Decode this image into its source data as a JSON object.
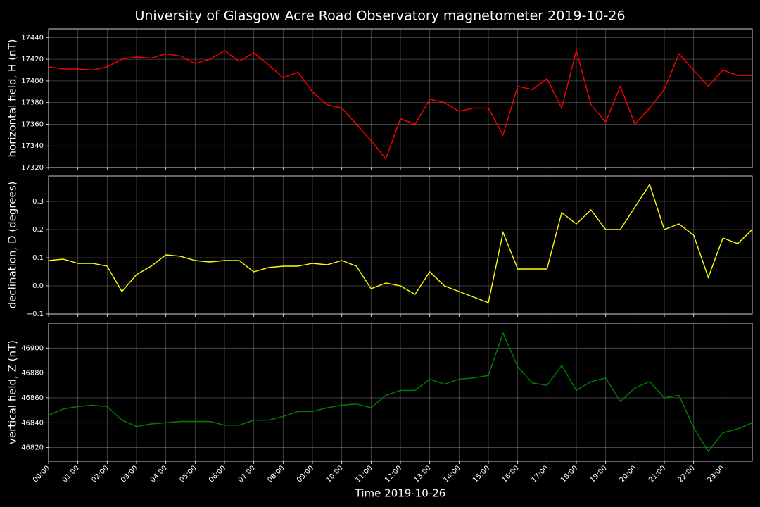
{
  "title": "University of Glasgow Acre Road Observatory magnetometer 2019-10-26",
  "grid": true,
  "chart_data": [
    {
      "type": "line",
      "ylabel": "horizontal field, H (nT)",
      "color": "#ff0000",
      "x": [
        0,
        0.5,
        1,
        1.5,
        2,
        2.5,
        3,
        3.5,
        4,
        4.5,
        5,
        5.5,
        6,
        6.5,
        7,
        7.5,
        8,
        8.5,
        9,
        9.5,
        10,
        10.5,
        11,
        11.5,
        12,
        12.5,
        13,
        13.5,
        14,
        14.5,
        15,
        15.5,
        16,
        16.5,
        17,
        17.5,
        18,
        18.5,
        19,
        19.5,
        20,
        20.5,
        21,
        21.5,
        22,
        22.5,
        23,
        23.5,
        24
      ],
      "values": [
        17413,
        17411,
        17411,
        17410,
        17413,
        17420,
        17422,
        17421,
        17425,
        17423,
        17416,
        17420,
        17428,
        17418,
        17426,
        17415,
        17403,
        17408,
        17390,
        17378,
        17375,
        17360,
        17345,
        17328,
        17365,
        17360,
        17383,
        17380,
        17372,
        17375,
        17375,
        17350,
        17395,
        17392,
        17402,
        17375,
        17428,
        17378,
        17362,
        17395,
        17360,
        17375,
        17392,
        17425,
        17410,
        17395,
        17410,
        17405,
        17405
      ],
      "xlim": [
        0,
        24
      ],
      "ylim": [
        17320,
        17448
      ],
      "yticks": [
        17320,
        17340,
        17360,
        17380,
        17400,
        17420,
        17440
      ]
    },
    {
      "type": "line",
      "ylabel": "declination, D (degrees)",
      "color": "#ffff00",
      "x": [
        0,
        0.5,
        1,
        1.5,
        2,
        2.5,
        3,
        3.5,
        4,
        4.5,
        5,
        5.5,
        6,
        6.5,
        7,
        7.5,
        8,
        8.5,
        9,
        9.5,
        10,
        10.5,
        11,
        11.5,
        12,
        12.5,
        13,
        13.5,
        14,
        14.5,
        15,
        15.5,
        16,
        16.5,
        17,
        17.5,
        18,
        18.5,
        19,
        19.5,
        20,
        20.5,
        21,
        21.5,
        22,
        22.5,
        23,
        23.5,
        24
      ],
      "values": [
        0.09,
        0.095,
        0.08,
        0.08,
        0.07,
        -0.02,
        0.04,
        0.07,
        0.11,
        0.105,
        0.09,
        0.085,
        0.09,
        0.09,
        0.05,
        0.065,
        0.07,
        0.07,
        0.08,
        0.075,
        0.09,
        0.07,
        -0.01,
        0.01,
        0.0,
        -0.03,
        0.05,
        0.0,
        -0.02,
        -0.04,
        -0.06,
        0.19,
        0.06,
        0.06,
        0.06,
        0.26,
        0.22,
        0.27,
        0.2,
        0.2,
        0.28,
        0.36,
        0.2,
        0.22,
        0.18,
        0.03,
        0.17,
        0.15,
        0.2
      ],
      "xlim": [
        0,
        24
      ],
      "ylim": [
        -0.1,
        0.39
      ],
      "yticks": [
        {
          "value": -0.1,
          "label": "−0.1"
        },
        {
          "value": 0,
          "label": "0.0"
        },
        0.1,
        0.2,
        0.3
      ]
    },
    {
      "type": "line",
      "ylabel": "vertical field, Z (nT)",
      "xlabel": "Time 2019-10-26",
      "color": "#008000",
      "x": [
        0,
        0.5,
        1,
        1.5,
        2,
        2.5,
        3,
        3.5,
        4,
        4.5,
        5,
        5.5,
        6,
        6.5,
        7,
        7.5,
        8,
        8.5,
        9,
        9.5,
        10,
        10.5,
        11,
        11.5,
        12,
        12.5,
        13,
        13.5,
        14,
        14.5,
        15,
        15.5,
        16,
        16.5,
        17,
        17.5,
        18,
        18.5,
        19,
        19.5,
        20,
        20.5,
        21,
        21.5,
        22,
        22.5,
        23,
        23.5,
        24
      ],
      "values": [
        46846,
        46851,
        46853,
        46854,
        46853,
        46842,
        46837,
        46839,
        46840,
        46841,
        46841,
        46841,
        46838,
        46838,
        46842,
        46842,
        46845,
        46849,
        46849,
        46852,
        46854,
        46855,
        46852,
        46862,
        46866,
        46866,
        46875,
        46871,
        46875,
        46876,
        46878,
        46912,
        46885,
        46872,
        46870,
        46886,
        46866,
        46873,
        46876,
        46857,
        46868,
        46873,
        46860,
        46862,
        46836,
        46817,
        46832,
        46835,
        46840
      ],
      "xlim": [
        0,
        24
      ],
      "ylim": [
        46809,
        46920
      ],
      "yticks": [
        46820,
        46840,
        46860,
        46880,
        46900
      ],
      "xticks": [
        {
          "value": 0,
          "label": "00:00"
        },
        {
          "value": 1,
          "label": "01:00"
        },
        {
          "value": 2,
          "label": "02:00"
        },
        {
          "value": 3,
          "label": "03:00"
        },
        {
          "value": 4,
          "label": "04:00"
        },
        {
          "value": 5,
          "label": "05:00"
        },
        {
          "value": 6,
          "label": "06:00"
        },
        {
          "value": 7,
          "label": "07:00"
        },
        {
          "value": 8,
          "label": "08:00"
        },
        {
          "value": 9,
          "label": "09:00"
        },
        {
          "value": 10,
          "label": "10:00"
        },
        {
          "value": 11,
          "label": "11:00"
        },
        {
          "value": 12,
          "label": "12:00"
        },
        {
          "value": 13,
          "label": "13:00"
        },
        {
          "value": 14,
          "label": "14:00"
        },
        {
          "value": 15,
          "label": "15:00"
        },
        {
          "value": 16,
          "label": "16:00"
        },
        {
          "value": 17,
          "label": "17:00"
        },
        {
          "value": 18,
          "label": "18:00"
        },
        {
          "value": 19,
          "label": "19:00"
        },
        {
          "value": 20,
          "label": "20:00"
        },
        {
          "value": 21,
          "label": "21:00"
        },
        {
          "value": 22,
          "label": "22:00"
        },
        {
          "value": 23,
          "label": "23:00"
        }
      ]
    }
  ]
}
